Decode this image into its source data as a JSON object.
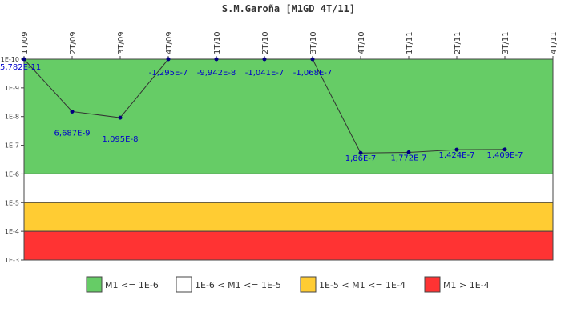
{
  "chart_data": {
    "type": "line",
    "title": "S.M.Garoña [M1GD 4T/11]",
    "x": [
      "1T/09",
      "2T/09",
      "3T/09",
      "4T/09",
      "1T/10",
      "2T/10",
      "3T/10",
      "4T/10",
      "1T/11",
      "2T/11",
      "3T/11",
      "4T/11"
    ],
    "y_scale": "log",
    "y_axis_reversed": true,
    "ylim": [
      "1E-10",
      "1E-3"
    ],
    "y_ticks": [
      "1E-10",
      "1E-9",
      "1E-8",
      "1E-7",
      "1E-6",
      "1E-5",
      "1E-4",
      "1E-3"
    ],
    "grid": false,
    "series": [
      {
        "color": "#333333",
        "marker_color": "#000080",
        "values": [
          5.782e-11,
          6.687e-09,
          1.095e-08,
          -1.295e-07,
          -9.942e-08,
          -1.041e-07,
          -1.068e-07,
          1.86e-07,
          1.772e-07,
          1.424e-07,
          1.409e-07,
          null
        ],
        "labels": [
          "5,782E-11",
          "6,687E-9",
          "1,095E-8",
          "-1,295E-7",
          "-9,942E-8",
          "-1,041E-7",
          "-1,068E-7",
          "1,86E-7",
          "1,772E-7",
          "1,424E-7",
          "1,409E-7",
          ""
        ]
      }
    ],
    "bands": [
      {
        "from": "1E-10",
        "to": "1E-6",
        "color": "#66cc66",
        "label": "M1 <= 1E-6"
      },
      {
        "from": "1E-6",
        "to": "1E-5",
        "color": "#ffffff",
        "label": "1E-6 < M1 <= 1E-5"
      },
      {
        "from": "1E-5",
        "to": "1E-4",
        "color": "#ffcc33",
        "label": "1E-5 < M1 <= 1E-4"
      },
      {
        "from": "1E-4",
        "to": "1E-3",
        "color": "#ff3333",
        "label": "M1 > 1E-4"
      }
    ],
    "legend_position": "bottom"
  }
}
